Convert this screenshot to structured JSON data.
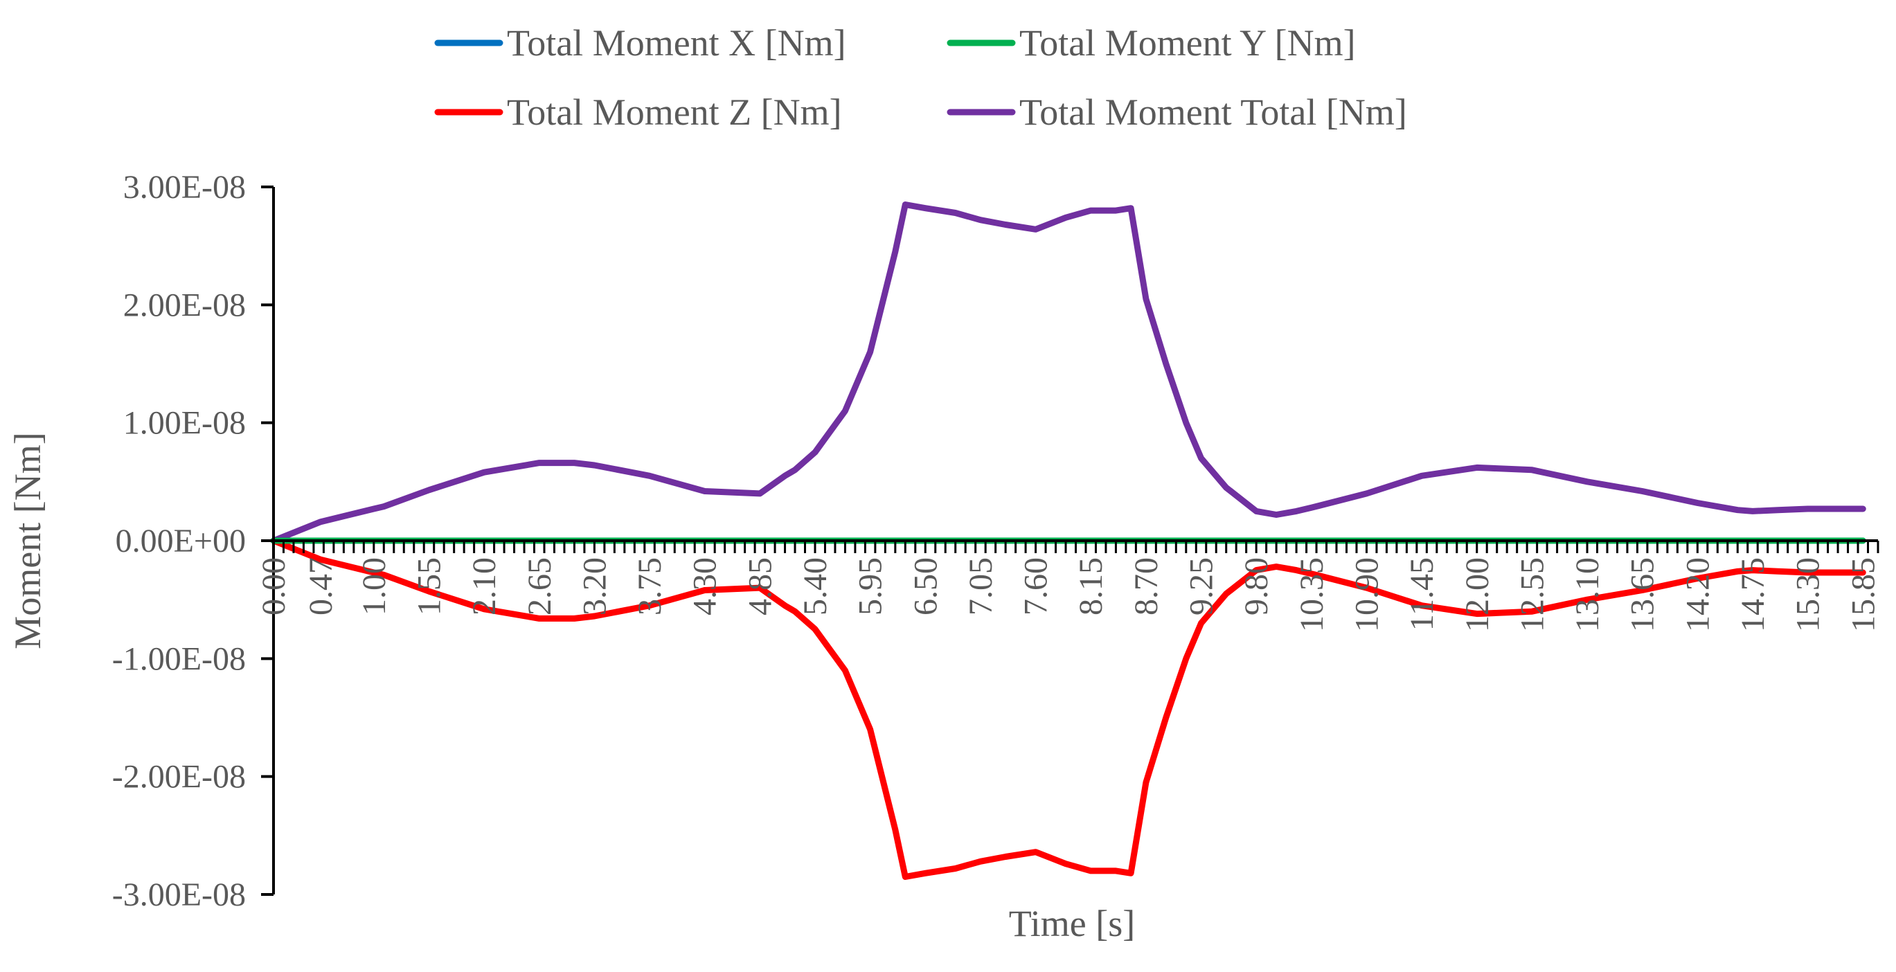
{
  "chart_data": {
    "type": "line",
    "title": "",
    "xlabel": "Time [s]",
    "ylabel": "Moment [Nm]",
    "xlim": [
      0,
      16.0
    ],
    "ylim": [
      -3e-08,
      3e-08
    ],
    "grid": false,
    "legend_position": "top",
    "x_tick_labels": [
      "0.00",
      "0.47",
      "1.00",
      "1.55",
      "2.10",
      "2.65",
      "3.20",
      "3.75",
      "4.30",
      "4.85",
      "5.40",
      "5.95",
      "6.50",
      "7.05",
      "7.60",
      "8.15",
      "8.70",
      "9.25",
      "9.80",
      "10.35",
      "10.90",
      "11.45",
      "12.00",
      "12.55",
      "13.10",
      "13.65",
      "14.20",
      "14.75",
      "15.30",
      "15.85"
    ],
    "y_tick_labels": [
      "3.00E-08",
      "2.00E-08",
      "1.00E-08",
      "0.00E+00",
      "-1.00E-08",
      "-2.00E-08",
      "-3.00E-08"
    ],
    "y_tick_values": [
      3e-08,
      2e-08,
      1e-08,
      0,
      -1e-08,
      -2e-08,
      -3e-08
    ],
    "x": [
      0.0,
      0.47,
      1.0,
      1.1,
      1.55,
      2.1,
      2.65,
      3.0,
      3.2,
      3.75,
      4.3,
      4.85,
      5.1,
      5.2,
      5.4,
      5.7,
      5.95,
      6.2,
      6.3,
      6.5,
      6.8,
      7.05,
      7.3,
      7.6,
      7.9,
      8.15,
      8.4,
      8.55,
      8.7,
      8.9,
      9.1,
      9.25,
      9.5,
      9.8,
      10.0,
      10.2,
      10.35,
      10.9,
      11.45,
      12.0,
      12.55,
      13.1,
      13.65,
      14.2,
      14.6,
      14.75,
      15.0,
      15.3,
      15.85
    ],
    "series": [
      {
        "name": "Total Moment X [Nm]",
        "color": "#0070C0",
        "values": [
          0,
          0,
          0,
          0,
          0,
          0,
          0,
          0,
          0,
          0,
          0,
          0,
          0,
          0,
          0,
          0,
          0,
          0,
          0,
          0,
          0,
          0,
          0,
          0,
          0,
          0,
          0,
          0,
          0,
          0,
          0,
          0,
          0,
          0,
          0,
          0,
          0,
          0,
          0,
          0,
          0,
          0,
          0,
          0,
          0,
          0,
          0,
          0,
          0
        ]
      },
      {
        "name": "Total Moment Y [Nm]",
        "color": "#00B050",
        "values": [
          0,
          0,
          0,
          0,
          0,
          0,
          0,
          0,
          0,
          0,
          0,
          0,
          0,
          0,
          0,
          0,
          0,
          0,
          0,
          0,
          0,
          0,
          0,
          0,
          0,
          0,
          0,
          0,
          0,
          0,
          0,
          0,
          0,
          0,
          0,
          0,
          0,
          0,
          0,
          0,
          0,
          0,
          0,
          0,
          0,
          0,
          0,
          0,
          0
        ]
      },
      {
        "name": "Total Moment Z [Nm]",
        "color": "#FF0000",
        "values": [
          0,
          -1.6e-09,
          -2.7e-09,
          -2.9e-09,
          -4.3e-09,
          -5.8e-09,
          -6.6e-09,
          -6.6e-09,
          -6.4e-09,
          -5.5e-09,
          -4.2e-09,
          -4e-09,
          -5.5e-09,
          -6e-09,
          -7.5e-09,
          -1.1e-08,
          -1.6e-08,
          -2.45e-08,
          -2.85e-08,
          -2.82e-08,
          -2.78e-08,
          -2.72e-08,
          -2.68e-08,
          -2.64e-08,
          -2.74e-08,
          -2.8e-08,
          -2.8e-08,
          -2.82e-08,
          -2.05e-08,
          -1.5e-08,
          -1e-08,
          -7e-09,
          -4.5e-09,
          -2.5e-09,
          -2.2e-09,
          -2.5e-09,
          -2.8e-09,
          -4e-09,
          -5.5e-09,
          -6.2e-09,
          -6e-09,
          -5e-09,
          -4.2e-09,
          -3.2e-09,
          -2.6e-09,
          -2.5e-09,
          -2.6e-09,
          -2.7e-09,
          -2.7e-09
        ]
      },
      {
        "name": "Total Moment Total [Nm]",
        "color": "#7030A0",
        "values": [
          0,
          1.6e-09,
          2.7e-09,
          2.9e-09,
          4.3e-09,
          5.8e-09,
          6.6e-09,
          6.6e-09,
          6.4e-09,
          5.5e-09,
          4.2e-09,
          4e-09,
          5.5e-09,
          6e-09,
          7.5e-09,
          1.1e-08,
          1.6e-08,
          2.45e-08,
          2.85e-08,
          2.82e-08,
          2.78e-08,
          2.72e-08,
          2.68e-08,
          2.64e-08,
          2.74e-08,
          2.8e-08,
          2.8e-08,
          2.82e-08,
          2.05e-08,
          1.5e-08,
          1e-08,
          7e-09,
          4.5e-09,
          2.5e-09,
          2.2e-09,
          2.5e-09,
          2.8e-09,
          4e-09,
          5.5e-09,
          6.2e-09,
          6e-09,
          5e-09,
          4.2e-09,
          3.2e-09,
          2.6e-09,
          2.5e-09,
          2.6e-09,
          2.7e-09,
          2.7e-09
        ]
      }
    ]
  }
}
